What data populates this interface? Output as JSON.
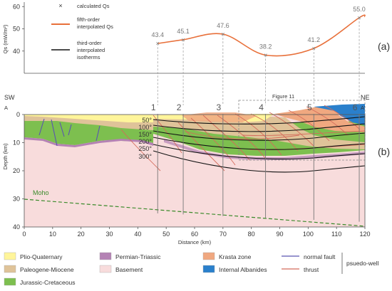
{
  "panel_a": {
    "panel_label": "(a)",
    "ylabel": "Qs (mW/m²)",
    "y_ticks": [
      "40",
      "50",
      "60"
    ],
    "legend": {
      "calculated": "calculated Qs",
      "fifth_line1": "fifth-order",
      "fifth_line2": "interpolated Qs",
      "third_line1": "third-order",
      "third_line2": "interpolated",
      "third_line3": "isotherms"
    },
    "wells": [
      {
        "distance": 47,
        "qs": 43.4,
        "label": "43.4"
      },
      {
        "distance": 56,
        "qs": 45.1,
        "label": "45.1"
      },
      {
        "distance": 70,
        "qs": 47.6,
        "label": "47.6"
      },
      {
        "distance": 85,
        "qs": 38.2,
        "label": "38.2"
      },
      {
        "distance": 102,
        "qs": 41.2,
        "label": "41.2"
      },
      {
        "distance": 118,
        "qs": 55.0,
        "label": "55.0"
      }
    ],
    "colors": {
      "curve": "#e8703a",
      "marker": "#777777"
    }
  },
  "panel_b": {
    "panel_label": "(b)",
    "ylabel": "Depth (km)",
    "xlabel": "Distance (km)",
    "x_ticks": [
      "0",
      "10",
      "20",
      "30",
      "40",
      "50",
      "60",
      "70",
      "80",
      "90",
      "100",
      "110",
      "120"
    ],
    "y_ticks": [
      "0",
      "10",
      "20",
      "30",
      "40"
    ],
    "sw": "SW",
    "ne": "NE",
    "a": "A",
    "a_prime": "A'",
    "moho": "Moho",
    "figure_ref": "Figure 11",
    "well_numbers": [
      "1",
      "2",
      "3",
      "4",
      "5",
      "6"
    ],
    "isotherms": [
      "50°",
      "100°",
      "150°",
      "200°",
      "250°",
      "300°"
    ]
  },
  "legend": {
    "plio": "Plio-Quaternary",
    "paleogene": "Paleogene-Miocene",
    "jurassic": "Jurassic-Cretaceous",
    "permian": "Permian-Triassic",
    "basement": "Basement",
    "krasta": "Krasta zone",
    "albanides": "Internal Albanides",
    "normal_fault": "normal fault",
    "thrust": "thrust",
    "pseudo_well": "psuedo-well"
  },
  "colors": {
    "plio": "#fff59a",
    "paleogene": "#dfc399",
    "jurassic": "#7dbf4f",
    "permian": "#b482b4",
    "basement": "#f8dcdc",
    "krasta": "#f0a880",
    "albanides": "#2a80cc",
    "normal_fault": "#5a55b0",
    "thrust": "#d46a5a"
  }
}
